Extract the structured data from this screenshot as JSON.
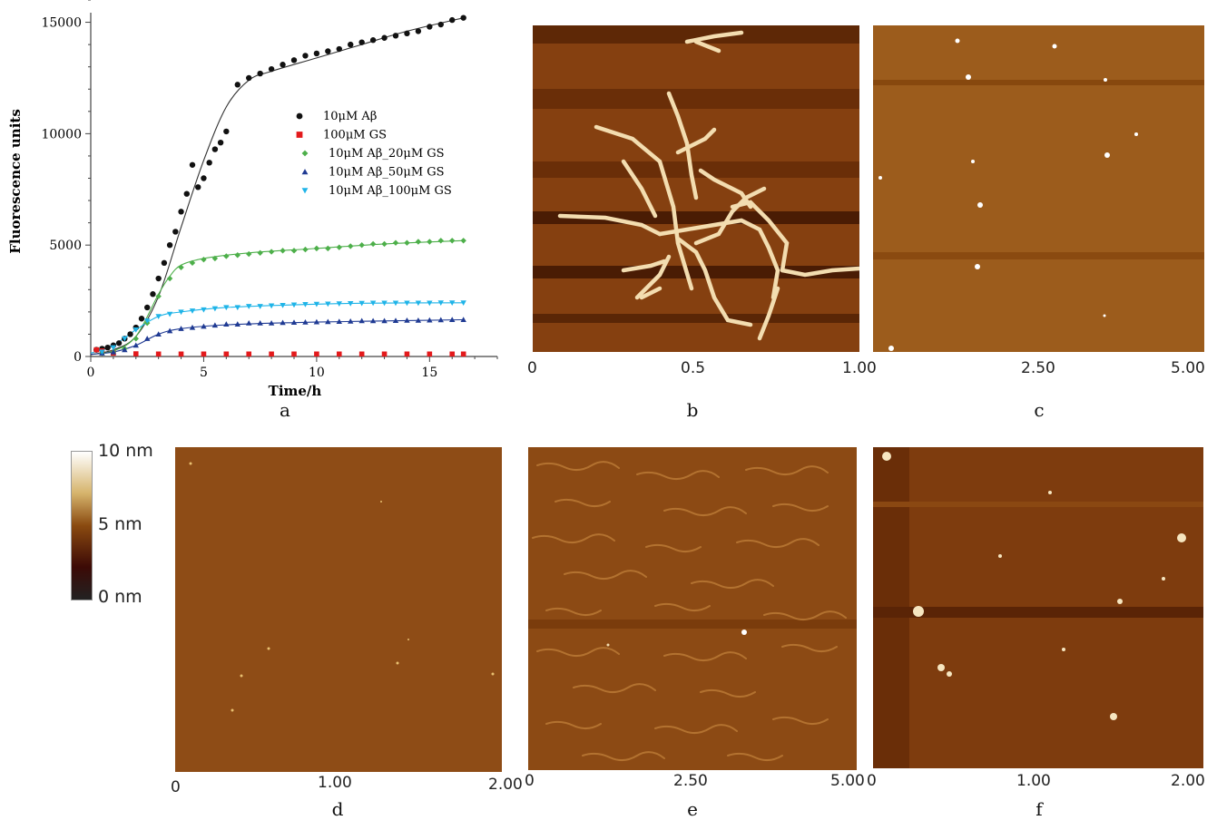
{
  "chart_data": {
    "type": "scatter",
    "xlabel": "Time/h",
    "ylabel": "Fluorescence units",
    "xlim": [
      0,
      18
    ],
    "ylim": [
      0,
      16000
    ],
    "x_ticks": [
      "0",
      "5",
      "10",
      "15"
    ],
    "y_ticks": [
      "0",
      "5000",
      "10000",
      "15000"
    ],
    "legend_placement": "upper-center",
    "series": [
      {
        "name": "10μM Aβ",
        "color": "#111111",
        "marker": "circle",
        "fit": "sigmoid",
        "x": [
          0.25,
          0.5,
          0.75,
          1.0,
          1.25,
          1.5,
          1.75,
          2.0,
          2.25,
          2.5,
          2.75,
          3.0,
          3.25,
          3.5,
          3.75,
          4.0,
          4.25,
          4.5,
          4.75,
          5.0,
          5.25,
          5.5,
          5.75,
          6.0,
          6.5,
          7.0,
          7.5,
          8.0,
          8.5,
          9.0,
          9.5,
          10.0,
          10.5,
          11.0,
          11.5,
          12.0,
          12.5,
          13.0,
          13.5,
          14.0,
          14.5,
          15.0,
          15.5,
          16.0,
          16.5
        ],
        "y": [
          300,
          350,
          400,
          500,
          600,
          800,
          1000,
          1300,
          1700,
          2200,
          2800,
          3500,
          4200,
          5000,
          5600,
          6500,
          7300,
          8600,
          7600,
          8000,
          8700,
          9300,
          9600,
          10100,
          12200,
          12500,
          12700,
          12900,
          13100,
          13300,
          13500,
          13600,
          13700,
          13800,
          14000,
          14100,
          14200,
          14300,
          14400,
          14500,
          14600,
          14800,
          14900,
          15100,
          15200
        ],
        "fit_points": [
          [
            0,
            80
          ],
          [
            1,
            300
          ],
          [
            2,
            900
          ],
          [
            3,
            2700
          ],
          [
            4,
            5800
          ],
          [
            5,
            8800
          ],
          [
            6,
            11200
          ],
          [
            7,
            12400
          ],
          [
            8,
            12800
          ],
          [
            10,
            13400
          ],
          [
            12,
            14000
          ],
          [
            14,
            14600
          ],
          [
            16.5,
            15200
          ]
        ]
      },
      {
        "name": "100μM GS",
        "color": "#e31a1c",
        "marker": "square",
        "x": [
          0.25,
          0.5,
          1,
          2,
          3,
          4,
          5,
          6,
          7,
          8,
          9,
          10,
          11,
          12,
          13,
          14,
          15,
          16,
          16.5
        ],
        "y": [
          300,
          250,
          150,
          120,
          110,
          110,
          110,
          110,
          110,
          110,
          110,
          110,
          110,
          110,
          110,
          110,
          110,
          110,
          110
        ]
      },
      {
        "name": "10μM Aβ_20μM GS",
        "color": "#4daf4a",
        "marker": "diamond",
        "fit": "sigmoid",
        "x": [
          0.5,
          1,
          1.5,
          2,
          2.5,
          3,
          3.5,
          4,
          4.5,
          5,
          5.5,
          6,
          6.5,
          7,
          7.5,
          8,
          8.5,
          9,
          9.5,
          10,
          10.5,
          11,
          11.5,
          12,
          12.5,
          13,
          13.5,
          14,
          14.5,
          15,
          15.5,
          16,
          16.5
        ],
        "y": [
          150,
          200,
          350,
          800,
          1500,
          2700,
          3500,
          4000,
          4200,
          4350,
          4400,
          4500,
          4550,
          4600,
          4650,
          4700,
          4750,
          4750,
          4800,
          4850,
          4850,
          4900,
          4950,
          5000,
          5050,
          5050,
          5100,
          5100,
          5150,
          5150,
          5200,
          5200,
          5200
        ],
        "fit_points": [
          [
            0,
            100
          ],
          [
            1,
            250
          ],
          [
            2,
            900
          ],
          [
            3,
            2800
          ],
          [
            3.5,
            3600
          ],
          [
            4,
            4100
          ],
          [
            5,
            4400
          ],
          [
            7,
            4650
          ],
          [
            10,
            4850
          ],
          [
            13,
            5050
          ],
          [
            16.5,
            5200
          ]
        ]
      },
      {
        "name": "10μM Aβ_50μM GS",
        "color": "#1f3a93",
        "marker": "triangle-up",
        "fit": "sigmoid",
        "x": [
          0.5,
          1,
          1.5,
          2,
          2.5,
          3,
          3.5,
          4,
          4.5,
          5,
          5.5,
          6,
          6.5,
          7,
          7.5,
          8,
          8.5,
          9,
          9.5,
          10,
          10.5,
          11,
          11.5,
          12,
          12.5,
          13,
          13.5,
          14,
          14.5,
          15,
          15.5,
          16,
          16.5
        ],
        "y": [
          150,
          200,
          300,
          500,
          800,
          1000,
          1150,
          1250,
          1300,
          1350,
          1400,
          1450,
          1450,
          1500,
          1500,
          1500,
          1520,
          1530,
          1540,
          1550,
          1560,
          1570,
          1580,
          1600,
          1600,
          1600,
          1610,
          1620,
          1620,
          1630,
          1640,
          1650,
          1650
        ],
        "fit_points": [
          [
            0,
            100
          ],
          [
            1,
            200
          ],
          [
            2,
            500
          ],
          [
            3,
            1000
          ],
          [
            4,
            1250
          ],
          [
            6,
            1420
          ],
          [
            9,
            1520
          ],
          [
            12,
            1580
          ],
          [
            16.5,
            1650
          ]
        ]
      },
      {
        "name": "10μM Aβ_100μM GS",
        "color": "#1fb4e8",
        "marker": "triangle-down",
        "fit": "sigmoid",
        "x": [
          0.5,
          1,
          1.5,
          2,
          2.5,
          3,
          3.5,
          4,
          4.5,
          5,
          5.5,
          6,
          6.5,
          7,
          7.5,
          8,
          8.5,
          9,
          9.5,
          10,
          10.5,
          11,
          11.5,
          12,
          12.5,
          13,
          13.5,
          14,
          14.5,
          15,
          15.5,
          16,
          16.5
        ],
        "y": [
          200,
          400,
          800,
          1200,
          1600,
          1800,
          1900,
          2000,
          2050,
          2100,
          2150,
          2200,
          2200,
          2250,
          2250,
          2280,
          2300,
          2320,
          2340,
          2350,
          2360,
          2370,
          2380,
          2390,
          2400,
          2400,
          2400,
          2400,
          2400,
          2400,
          2410,
          2410,
          2410
        ],
        "fit_points": [
          [
            0,
            150
          ],
          [
            1,
            500
          ],
          [
            2,
            1200
          ],
          [
            3,
            1800
          ],
          [
            4,
            2000
          ],
          [
            6,
            2200
          ],
          [
            9,
            2320
          ],
          [
            12,
            2390
          ],
          [
            16.5,
            2410
          ]
        ]
      }
    ]
  },
  "panels": {
    "a": {
      "letter": "a"
    },
    "b": {
      "letter": "b",
      "ticks": [
        "0",
        "0.5",
        "1.0"
      ]
    },
    "c": {
      "letter": "c",
      "ticks": [
        "0",
        "2.50",
        "5.00"
      ]
    },
    "d": {
      "letter": "d",
      "ticks": [
        "0",
        "1.00",
        "2.00"
      ]
    },
    "e": {
      "letter": "e",
      "ticks": [
        "0",
        "2.50",
        "5.00"
      ]
    },
    "f": {
      "letter": "f",
      "ticks": [
        "0",
        "1.00",
        "2.00"
      ]
    }
  },
  "scalebar": {
    "max_label": "10 nm",
    "mid_label": "5 nm",
    "min_label": "0 nm",
    "colors": [
      "#ffffff",
      "#d6b46c",
      "#8a4a10",
      "#3c0a06",
      "#222222"
    ]
  }
}
